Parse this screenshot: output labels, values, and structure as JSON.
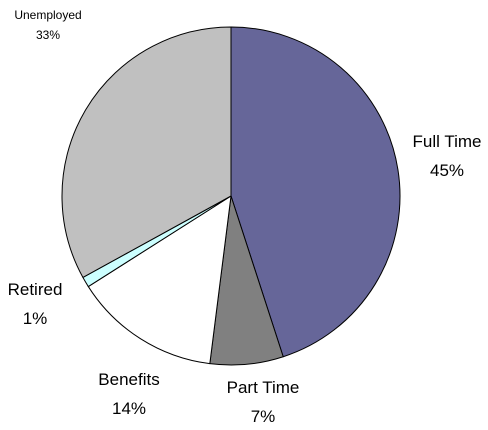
{
  "chart_data": {
    "type": "pie",
    "start_angle_deg": 0,
    "direction": "clockwise",
    "slices": [
      {
        "label": "Full Time",
        "value": 45,
        "value_text": "45%",
        "color": "#666699"
      },
      {
        "label": "Part Time",
        "value": 7,
        "value_text": "7%",
        "color": "#808080"
      },
      {
        "label": "Benefits",
        "value": 14,
        "value_text": "14%",
        "color": "#ffffff"
      },
      {
        "label": "Retired",
        "value": 1,
        "value_text": "1%",
        "color": "#ccffff"
      },
      {
        "label": "Unemployed",
        "value": 33,
        "value_text": "33%",
        "color": "#c0c0c0"
      }
    ],
    "legend": "none",
    "data_labels": "category name and percentage, outside slices"
  }
}
